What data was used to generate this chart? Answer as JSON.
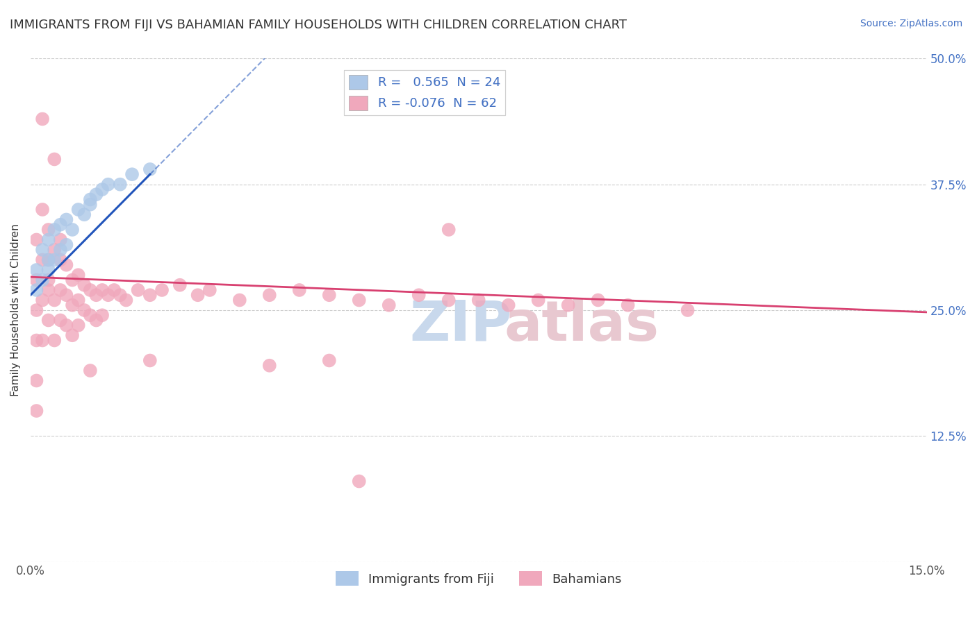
{
  "title": "IMMIGRANTS FROM FIJI VS BAHAMIAN FAMILY HOUSEHOLDS WITH CHILDREN CORRELATION CHART",
  "source": "Source: ZipAtlas.com",
  "ylabel": "Family Households with Children",
  "xlim": [
    0.0,
    0.15
  ],
  "ylim": [
    0.0,
    0.5
  ],
  "ytick_positions": [
    0.0,
    0.125,
    0.25,
    0.375,
    0.5
  ],
  "ytick_labels": [
    "",
    "12.5%",
    "25.0%",
    "37.5%",
    "50.0%"
  ],
  "legend_fiji_R": "0.565",
  "legend_fiji_N": "24",
  "legend_bah_R": "-0.076",
  "legend_bah_N": "62",
  "fiji_color": "#adc8e8",
  "fiji_line_color": "#2255bb",
  "bah_color": "#f0a8bc",
  "bah_line_color": "#d84070",
  "fiji_scatter_x": [
    0.001,
    0.001,
    0.002,
    0.002,
    0.003,
    0.003,
    0.003,
    0.004,
    0.004,
    0.005,
    0.005,
    0.006,
    0.006,
    0.007,
    0.008,
    0.009,
    0.01,
    0.01,
    0.011,
    0.012,
    0.013,
    0.015,
    0.017,
    0.02
  ],
  "fiji_scatter_y": [
    0.27,
    0.29,
    0.28,
    0.31,
    0.29,
    0.3,
    0.32,
    0.3,
    0.33,
    0.31,
    0.335,
    0.315,
    0.34,
    0.33,
    0.35,
    0.345,
    0.355,
    0.36,
    0.365,
    0.37,
    0.375,
    0.375,
    0.385,
    0.39
  ],
  "bah_scatter_x": [
    0.001,
    0.001,
    0.001,
    0.001,
    0.002,
    0.002,
    0.002,
    0.002,
    0.003,
    0.003,
    0.003,
    0.003,
    0.003,
    0.004,
    0.004,
    0.004,
    0.005,
    0.005,
    0.005,
    0.005,
    0.006,
    0.006,
    0.006,
    0.007,
    0.007,
    0.007,
    0.008,
    0.008,
    0.008,
    0.009,
    0.009,
    0.01,
    0.01,
    0.011,
    0.011,
    0.012,
    0.012,
    0.013,
    0.014,
    0.015,
    0.016,
    0.018,
    0.02,
    0.022,
    0.025,
    0.028,
    0.03,
    0.035,
    0.04,
    0.045,
    0.05,
    0.055,
    0.06,
    0.065,
    0.07,
    0.08,
    0.085,
    0.09,
    0.095,
    0.1,
    0.075,
    0.11
  ],
  "bah_scatter_y": [
    0.28,
    0.25,
    0.22,
    0.32,
    0.3,
    0.26,
    0.22,
    0.35,
    0.3,
    0.27,
    0.24,
    0.28,
    0.33,
    0.31,
    0.26,
    0.22,
    0.3,
    0.27,
    0.24,
    0.32,
    0.295,
    0.265,
    0.235,
    0.28,
    0.255,
    0.225,
    0.285,
    0.26,
    0.235,
    0.275,
    0.25,
    0.27,
    0.245,
    0.265,
    0.24,
    0.27,
    0.245,
    0.265,
    0.27,
    0.265,
    0.26,
    0.27,
    0.265,
    0.27,
    0.275,
    0.265,
    0.27,
    0.26,
    0.265,
    0.27,
    0.265,
    0.26,
    0.255,
    0.265,
    0.26,
    0.255,
    0.26,
    0.255,
    0.26,
    0.255,
    0.26,
    0.25
  ],
  "bah_outliers_x": [
    0.002,
    0.004,
    0.001,
    0.001,
    0.01,
    0.02,
    0.04,
    0.07,
    0.05,
    0.055
  ],
  "bah_outliers_y": [
    0.44,
    0.4,
    0.18,
    0.15,
    0.19,
    0.2,
    0.195,
    0.33,
    0.2,
    0.08
  ],
  "watermark_zip_color": "#c8d8ec",
  "watermark_atlas_color": "#e8c8d0",
  "bg_color": "#ffffff",
  "grid_color": "#cccccc",
  "title_fontsize": 13,
  "axis_label_fontsize": 11,
  "tick_fontsize": 12,
  "legend_fontsize": 13,
  "source_fontsize": 10
}
